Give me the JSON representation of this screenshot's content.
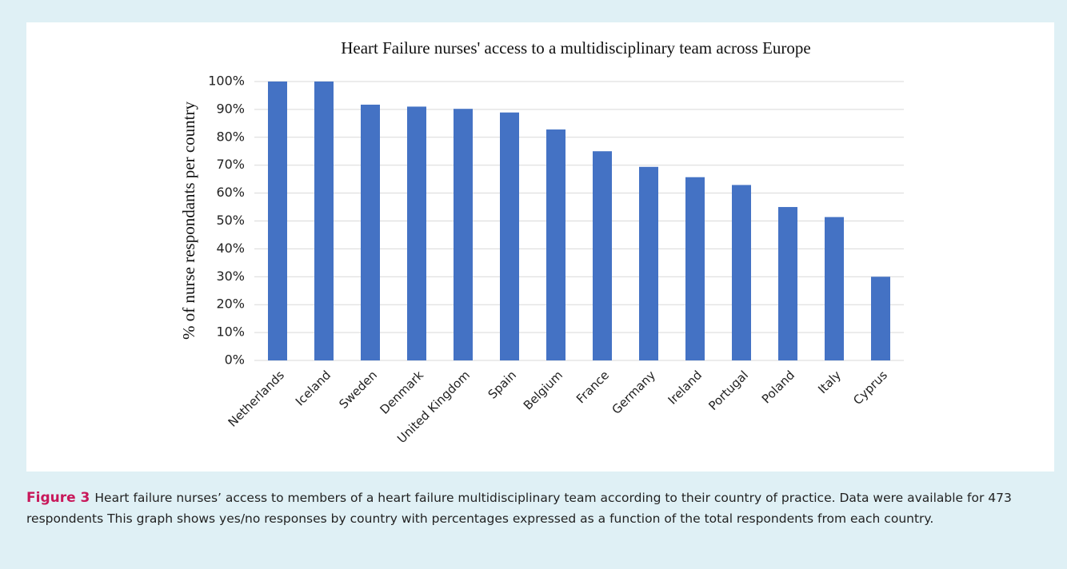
{
  "chart_data": {
    "type": "bar",
    "title": "Heart Failure nurses' access to a multidisciplinary team across Europe",
    "y_label": "% of nurse respondants per country",
    "categories": [
      "Netherlands",
      "Iceland",
      "Sweden",
      "Denmark",
      "United Kingdom",
      "Spain",
      "Belgium",
      "France",
      "Germany",
      "Ireland",
      "Portugal",
      "Poland",
      "Italy",
      "Cyprus"
    ],
    "values": [
      100,
      100,
      91.7,
      91,
      90.2,
      88.9,
      82.8,
      75,
      69.4,
      65.7,
      62.9,
      55,
      51.4,
      30
    ],
    "color": "#4472c4",
    "ylim": [
      0,
      100
    ],
    "yticks": [
      {
        "value": 0,
        "label": "0%"
      },
      {
        "value": 10,
        "label": "10%"
      },
      {
        "value": 20,
        "label": "20%"
      },
      {
        "value": 30,
        "label": "30%"
      },
      {
        "value": 40,
        "label": "40%"
      },
      {
        "value": 50,
        "label": "50%"
      },
      {
        "value": 60,
        "label": "60%"
      },
      {
        "value": 70,
        "label": "70%"
      },
      {
        "value": 80,
        "label": "80%"
      },
      {
        "value": 90,
        "label": "90%"
      },
      {
        "value": 100,
        "label": "100%"
      }
    ],
    "grid": true
  },
  "caption": {
    "label": "Figure 3",
    "text": "Heart failure nurses’ access to members of a heart failure multidisciplinary team according to their country of practice. Data were available for 473 respondents This graph shows yes/no responses by country with percentages expressed as a function of the total respondents from each country."
  }
}
